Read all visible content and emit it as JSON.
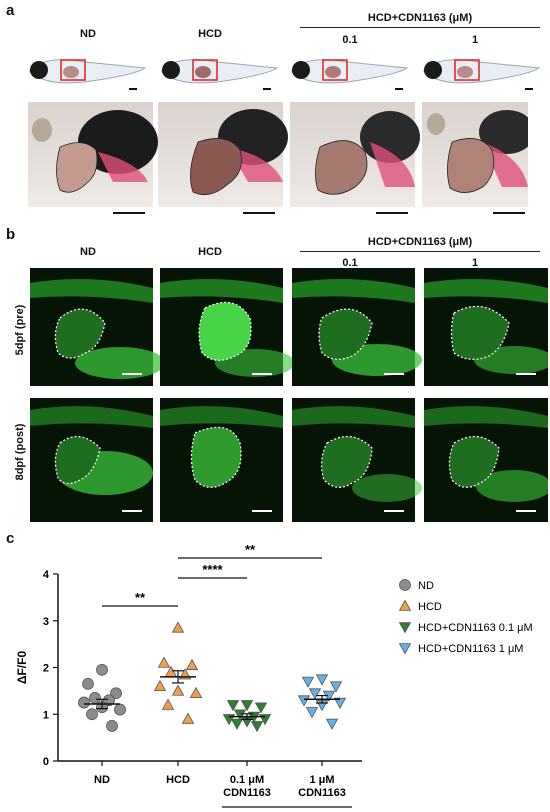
{
  "panel_a": {
    "letter": "a",
    "columns": [
      "ND",
      "HCD",
      "0.1",
      "1"
    ],
    "group_header": "HCD+CDN1163 (μM)"
  },
  "panel_b": {
    "letter": "b",
    "columns": [
      "ND",
      "HCD",
      "0.1",
      "1"
    ],
    "group_header": "HCD+CDN1163 (μM)",
    "rows": [
      "5dpf (pre)",
      "8dpf (post)"
    ]
  },
  "panel_c": {
    "letter": "c",
    "colors": {
      "ND": "#8c8c8c",
      "HCD": "#f0a04b",
      "low": "#2e7d32",
      "high": "#6aaee6"
    },
    "significance": [
      {
        "label": "**",
        "from": "ND",
        "to": "HCD"
      },
      {
        "label": "****",
        "from": "HCD",
        "to": "0.1 μM CDN1163"
      },
      {
        "label": "**",
        "from": "HCD",
        "to": "1 μM CDN1163"
      }
    ]
  },
  "chart_data": {
    "type": "scatter",
    "ylabel": "ΔF/F0",
    "ylim": [
      0,
      4
    ],
    "yticks": [
      "0",
      "1",
      "2",
      "3",
      "4"
    ],
    "categories": [
      "ND",
      "HCD",
      "0.1 μM\nCDN1163",
      "1 μM\nCDN1163"
    ],
    "group_label": "HCD",
    "legend_position": "right",
    "series": [
      {
        "name": "ND",
        "marker": "circle",
        "mean": 1.22,
        "sem": 0.1,
        "values": [
          1.95,
          1.65,
          1.45,
          1.35,
          1.3,
          1.25,
          1.1,
          1.15,
          1.0,
          0.75
        ]
      },
      {
        "name": "HCD",
        "marker": "triangle-up",
        "mean": 1.8,
        "sem": 0.13,
        "values": [
          2.85,
          2.1,
          2.05,
          1.9,
          1.85,
          1.6,
          1.45,
          1.5,
          1.2,
          0.9
        ]
      },
      {
        "name": "HCD+CDN1163 0.1 μM",
        "marker": "triangle-down",
        "mean": 0.95,
        "sem": 0.06,
        "values": [
          1.2,
          1.2,
          1.15,
          1.0,
          0.95,
          0.9,
          0.9,
          0.85,
          0.8,
          0.75
        ]
      },
      {
        "name": "HCD+CDN1163 1 μM",
        "marker": "triangle-down",
        "mean": 1.32,
        "sem": 0.08,
        "values": [
          1.75,
          1.7,
          1.6,
          1.45,
          1.4,
          1.3,
          1.25,
          1.2,
          1.05,
          0.8
        ]
      }
    ]
  }
}
